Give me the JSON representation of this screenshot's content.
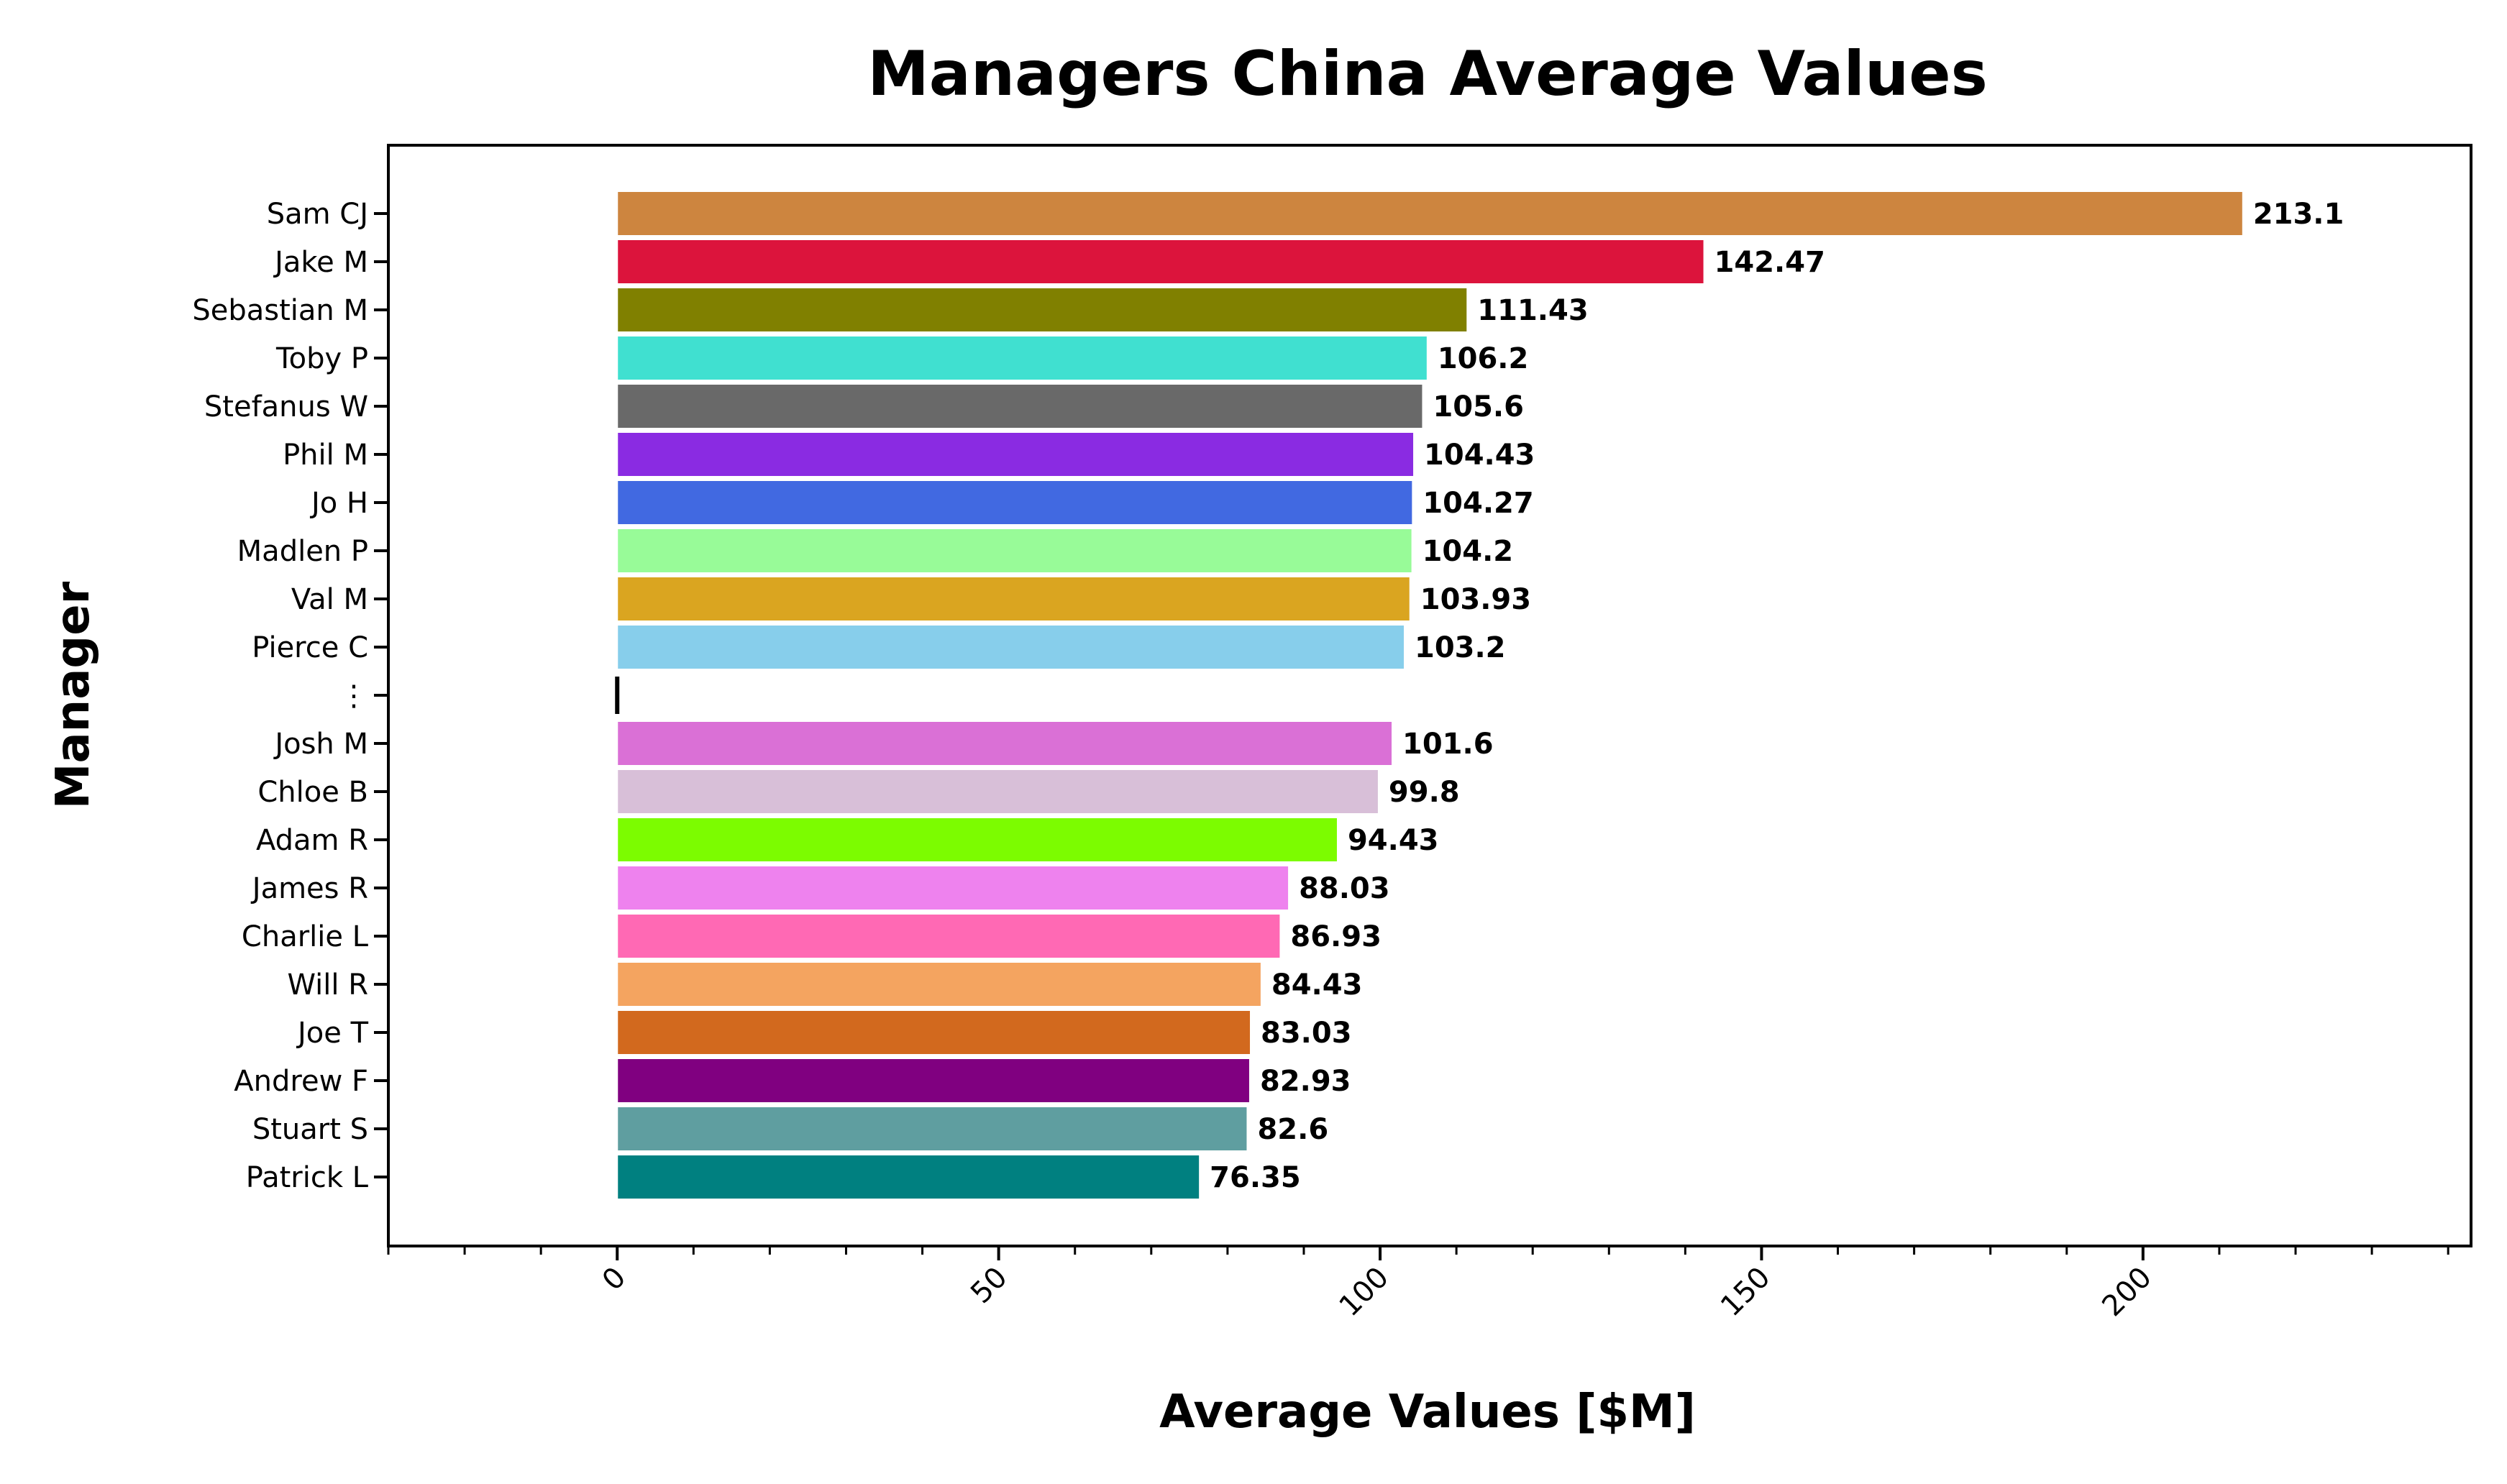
{
  "chart_data": {
    "type": "bar",
    "orientation": "horizontal",
    "title": "Managers China Average Values",
    "xlabel": "Average Values [$M]",
    "ylabel": "Manager",
    "xlim": [
      -30,
      243
    ],
    "xticks": [
      0,
      50,
      100,
      150,
      200
    ],
    "xtick_labels": [
      "0",
      "50",
      "100",
      "150",
      "200"
    ],
    "grid": false,
    "legend": "none",
    "categories": [
      "Sam CJ",
      "Jake M",
      "Sebastian M",
      "Toby P",
      "Stefanus W",
      "Phil M",
      "Jo H",
      "Madlen P",
      "Val M",
      "Pierce C",
      "⋮",
      "Josh M",
      "Chloe B",
      "Adam R",
      "James R",
      "Charlie L",
      "Will R",
      "Joe T",
      "Andrew F",
      "Stuart S",
      "Patrick L"
    ],
    "values": [
      213.1,
      142.47,
      111.43,
      106.2,
      105.6,
      104.43,
      104.27,
      104.2,
      103.93,
      103.2,
      0.5,
      101.6,
      99.8,
      94.43,
      88.03,
      86.93,
      84.43,
      83.03,
      82.93,
      82.6,
      76.35
    ],
    "data_labels": [
      "213.1",
      "142.47",
      "111.43",
      "106.2",
      "105.6",
      "104.43",
      "104.27",
      "104.2",
      "103.93",
      "103.2",
      "",
      "101.6",
      "99.8",
      "94.43",
      "88.03",
      "86.93",
      "84.43",
      "83.03",
      "82.93",
      "82.6",
      "76.35"
    ],
    "colors": [
      "#CD853F",
      "#DC143C",
      "#808000",
      "#40E0D0",
      "#696969",
      "#8A2BE2",
      "#4169E1",
      "#98FB98",
      "#DAA520",
      "#87CEEB",
      "#000000",
      "#DA70D6",
      "#D8BFD8",
      "#7CFC00",
      "#EE82EE",
      "#FF69B4",
      "#F4A460",
      "#D2691E",
      "#800080",
      "#5F9EA0",
      "#008080"
    ]
  }
}
